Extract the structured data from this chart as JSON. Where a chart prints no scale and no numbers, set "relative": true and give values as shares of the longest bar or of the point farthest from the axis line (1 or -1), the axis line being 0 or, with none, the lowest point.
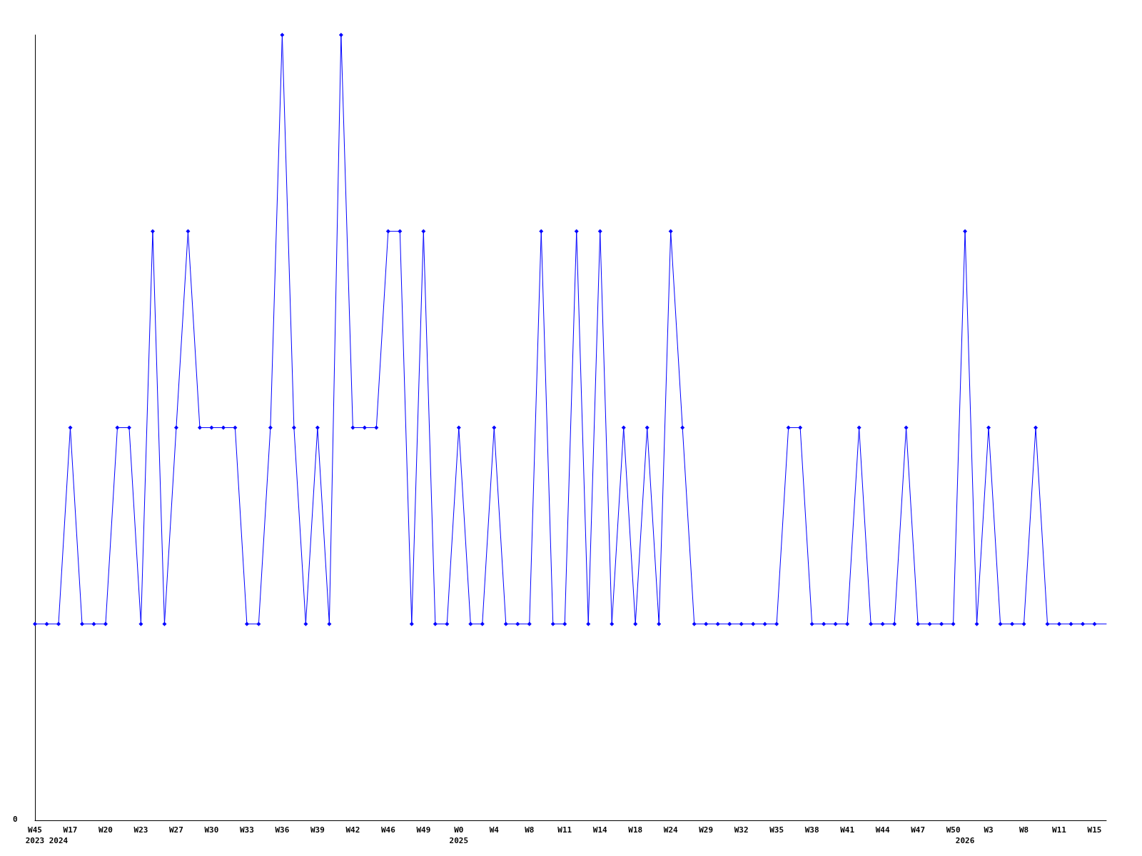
{
  "chart_data": {
    "type": "line",
    "relative": true,
    "marker": "diamond",
    "annotations": [
      "0"
    ],
    "categories": [
      "W45\n2023",
      null,
      "\n2024",
      "W17",
      null,
      null,
      "W20",
      null,
      null,
      "W23",
      null,
      null,
      "W27",
      null,
      null,
      "W30",
      null,
      null,
      "W33",
      null,
      null,
      "W36",
      null,
      null,
      "W39",
      null,
      null,
      "W42",
      null,
      null,
      "W46",
      null,
      null,
      "W49",
      null,
      null,
      "W0\n2025",
      null,
      null,
      "W4",
      null,
      null,
      "W8",
      null,
      null,
      "W11",
      null,
      null,
      "W14",
      null,
      null,
      "W18",
      null,
      null,
      "W24",
      null,
      null,
      "W29",
      null,
      null,
      "W32",
      null,
      null,
      "W35",
      null,
      null,
      "W38",
      null,
      null,
      "W41",
      null,
      null,
      "W44",
      null,
      null,
      "W47",
      null,
      null,
      "W50",
      "\n2026",
      null,
      "W3",
      null,
      null,
      "W8",
      null,
      null,
      "W11",
      null,
      null,
      "W15",
      null
    ],
    "series": [
      {
        "color": "#0000ff",
        "values": [
          0.25,
          0.25,
          0.25,
          0.5,
          0.25,
          0.25,
          0.25,
          0.5,
          0.5,
          0.25,
          0.75,
          0.25,
          0.5,
          0.75,
          0.5,
          0.5,
          0.5,
          0.5,
          0.25,
          0.25,
          0.5,
          1,
          0.5,
          0.25,
          0.5,
          0.25,
          1,
          0.5,
          0.5,
          0.5,
          0.75,
          0.75,
          0.25,
          0.75,
          0.25,
          0.25,
          0.5,
          0.25,
          0.25,
          0.5,
          0.25,
          0.25,
          0.25,
          0.75,
          0.25,
          0.25,
          0.75,
          0.25,
          0.75,
          0.25,
          0.5,
          0.25,
          0.5,
          0.25,
          0.75,
          0.5,
          0.25,
          0.25,
          0.25,
          0.25,
          0.25,
          0.25,
          0.25,
          0.25,
          0.5,
          0.5,
          0.25,
          0.25,
          0.25,
          0.25,
          0.5,
          0.25,
          0.25,
          0.25,
          0.5,
          0.25,
          0.25,
          0.25,
          0.25,
          0.75,
          0.25,
          0.5,
          0.25,
          0.25,
          0.25,
          0.5,
          0.25,
          0.25,
          0.25,
          0.25,
          0.25,
          0.25
        ]
      }
    ]
  }
}
